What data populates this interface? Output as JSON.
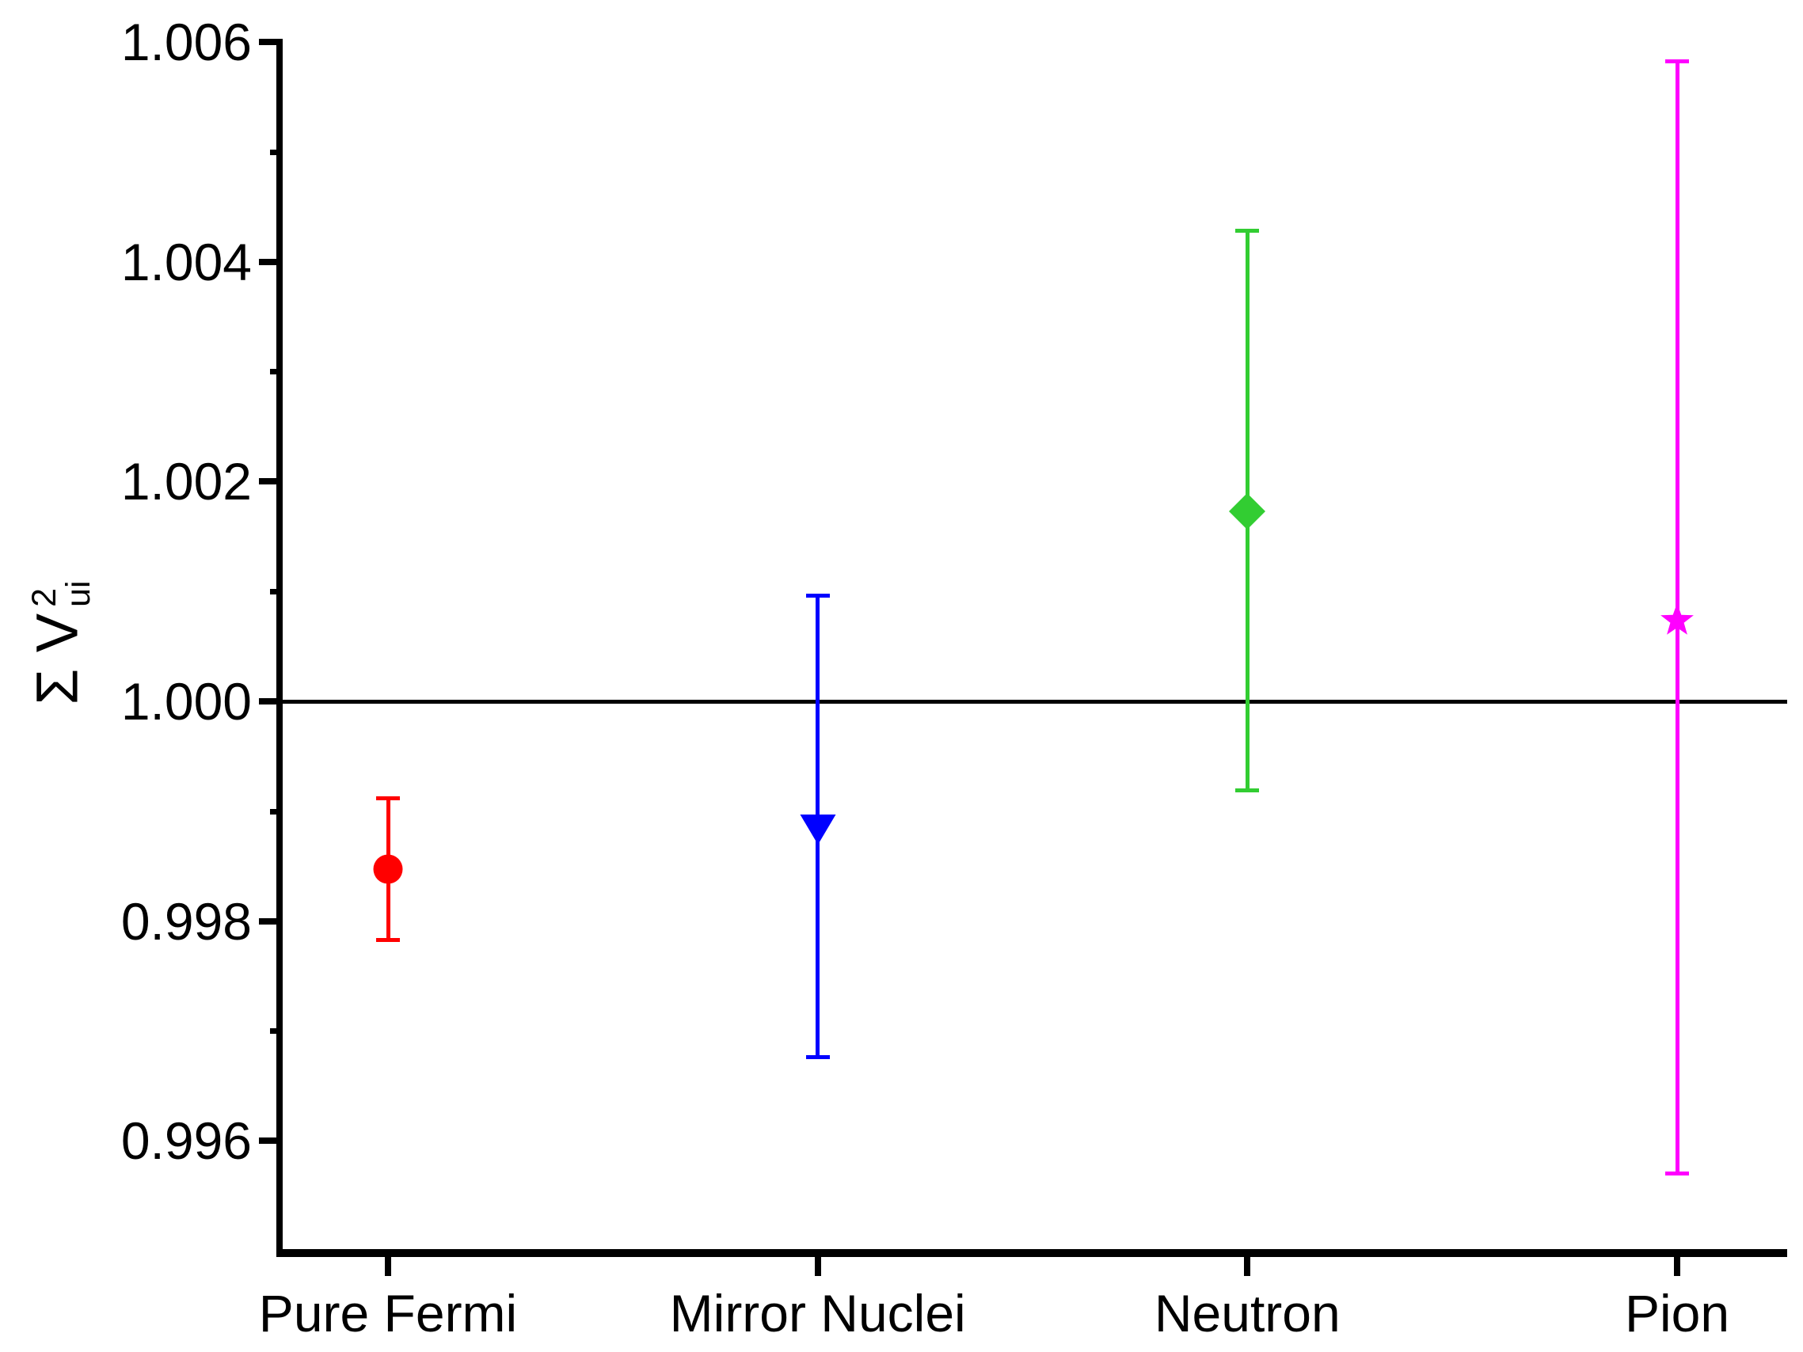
{
  "chart_data": {
    "type": "scatter",
    "title": "",
    "ylabel": {
      "prefix": "Σ V",
      "sub": "ui",
      "sup": "2"
    },
    "y_axis": {
      "min": 0.995,
      "max": 1.006,
      "major_tick_values": [
        1.006,
        1.004,
        1.002,
        1.0,
        0.998,
        0.996
      ],
      "major_tick_labels": [
        "1.006",
        "1.004",
        "1.002",
        "1.000",
        "0.998",
        "0.996"
      ],
      "minor_tick_values": [
        1.005,
        1.003,
        1.001,
        0.999,
        0.997
      ]
    },
    "reference_line": {
      "y": 1.0,
      "color": "#000000"
    },
    "categories": [
      "Pure Fermi",
      "Mirror Nuclei",
      "Neutron",
      "Pion"
    ],
    "series": [
      {
        "category": "Pure Fermi",
        "y": 0.99847,
        "y_lower": 0.99783,
        "y_upper": 0.99912,
        "marker": "circle",
        "color": "#ff0000"
      },
      {
        "category": "Mirror Nuclei",
        "y": 0.99883,
        "y_lower": 0.99676,
        "y_upper": 1.00096,
        "marker": "triangle-down",
        "color": "#0000ff"
      },
      {
        "category": "Neutron",
        "y": 1.00173,
        "y_lower": 0.99919,
        "y_upper": 1.00428,
        "marker": "diamond",
        "color": "#32cd32"
      },
      {
        "category": "Pion",
        "y": 1.00074,
        "y_lower": 0.9957,
        "y_upper": 1.00582,
        "marker": "star",
        "color": "#ff00ff"
      }
    ],
    "grid": false,
    "legend": false,
    "axis_color": "#000000"
  }
}
